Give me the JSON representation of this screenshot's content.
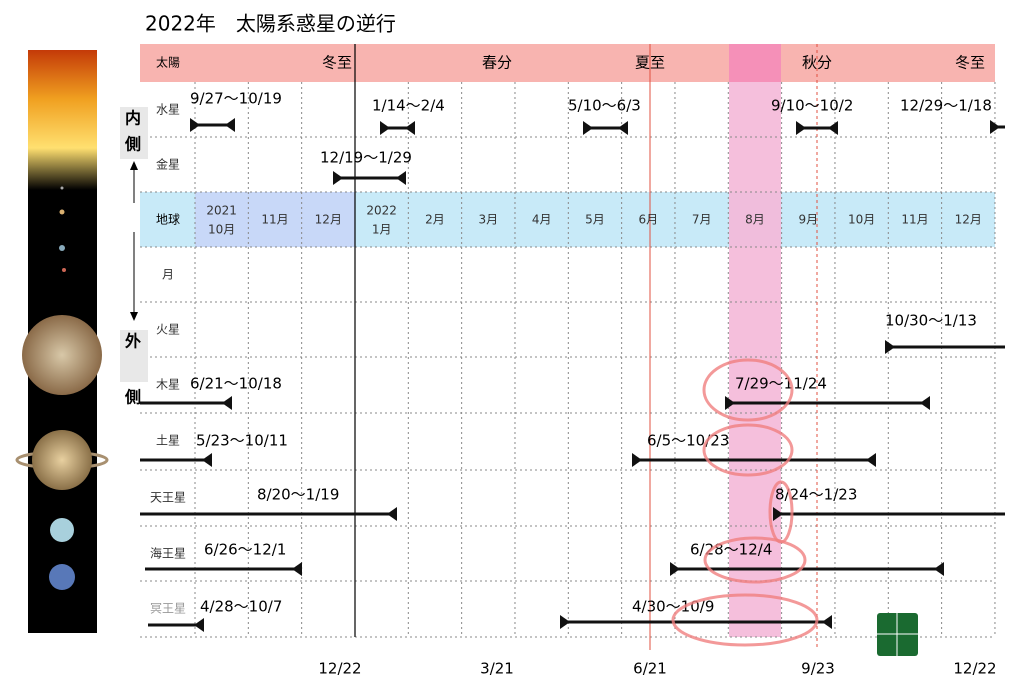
{
  "title": "2022年　太陽系惑星の逆行",
  "sun_row": {
    "label": "太陽",
    "events": [
      "冬至",
      "春分",
      "夏至",
      "秋分",
      "冬至"
    ]
  },
  "side_labels": {
    "inner": [
      "内",
      "側"
    ],
    "outer": [
      "外",
      "側"
    ]
  },
  "earth_row": {
    "label": "地球",
    "cells": [
      {
        "year": "2021",
        "month": "10月"
      },
      {
        "month": "11月"
      },
      {
        "month": "12月"
      },
      {
        "year": "2022",
        "month": "1月"
      },
      {
        "month": "2月"
      },
      {
        "month": "3月"
      },
      {
        "month": "4月"
      },
      {
        "month": "5月"
      },
      {
        "month": "6月"
      },
      {
        "month": "7月"
      },
      {
        "month": "8月"
      },
      {
        "month": "9月"
      },
      {
        "month": "10月"
      },
      {
        "month": "11月"
      },
      {
        "month": "12月"
      }
    ]
  },
  "planets": [
    {
      "name": "水星",
      "retrogrades": [
        "9/27〜10/19",
        "1/14〜2/4",
        "5/10〜6/3",
        "9/10〜10/2",
        "12/29〜1/18"
      ]
    },
    {
      "name": "金星",
      "retrogrades": [
        "12/19〜1/29"
      ]
    },
    {
      "name": "月",
      "retrogrades": []
    },
    {
      "name": "火星",
      "retrogrades": [
        "10/30〜1/13"
      ]
    },
    {
      "name": "木星",
      "retrogrades": [
        "6/21〜10/18",
        "7/29〜11/24"
      ]
    },
    {
      "name": "土星",
      "retrogrades": [
        "5/23〜10/11",
        "6/5〜10/23"
      ]
    },
    {
      "name": "天王星",
      "retrogrades": [
        "8/20〜1/19",
        "8/24〜1/23"
      ]
    },
    {
      "name": "海王星",
      "retrogrades": [
        "6/26〜12/1",
        "6/28〜12/4"
      ]
    },
    {
      "name": "冥王星",
      "retrogrades": [
        "4/28〜10/7",
        "4/30〜10/9"
      ]
    }
  ],
  "bottom_dates": [
    "12/22",
    "3/21",
    "6/21",
    "9/23",
    "12/22"
  ]
}
